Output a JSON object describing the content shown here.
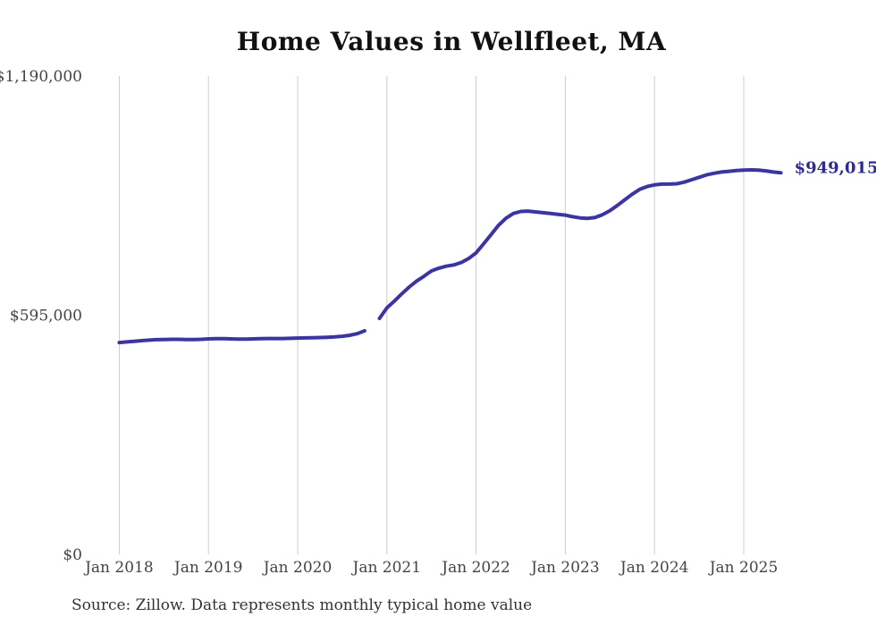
{
  "page": {
    "title": "Home Values in Wellfleet, MA",
    "source_note": "Source: Zillow. Data represents monthly typical home value"
  },
  "chart_data": {
    "type": "line",
    "title": "Home Values in Wellfleet, MA",
    "series_name": "Monthly typical home value",
    "x_start_month": "Jan 2018",
    "x_end_month": "Jun 2025",
    "x_tick_labels": [
      "Jan 2018",
      "Jan 2019",
      "Jan 2020",
      "Jan 2021",
      "Jan 2022",
      "Jan 2023",
      "Jan 2024",
      "Jan 2025"
    ],
    "x_tick_month_index": [
      0,
      12,
      24,
      36,
      48,
      60,
      72,
      84
    ],
    "y_tick_labels": [
      "$0",
      "$595,000",
      "$1,190,000"
    ],
    "y_tick_values": [
      0,
      595000,
      1190000
    ],
    "ylim": [
      0,
      1190000
    ],
    "grid": "vertical-only",
    "legend": "none",
    "gap_months": [
      "Nov 2020"
    ],
    "end_label": "$949,015",
    "end_value": 949015,
    "values_monthly": [
      527000,
      528500,
      530000,
      531500,
      533000,
      534000,
      534500,
      535000,
      535000,
      534500,
      534500,
      535000,
      536000,
      536500,
      536500,
      536000,
      535500,
      535500,
      536000,
      536500,
      537000,
      537000,
      537000,
      537500,
      538000,
      538500,
      539000,
      539500,
      540000,
      541000,
      542500,
      545000,
      549000,
      556000,
      null,
      587000,
      613000,
      630000,
      648000,
      665000,
      680000,
      692000,
      705000,
      712000,
      717000,
      720000,
      726000,
      736000,
      750000,
      772000,
      795000,
      818000,
      836000,
      848000,
      853000,
      854000,
      852000,
      850000,
      848000,
      846000,
      844000,
      840000,
      837000,
      836000,
      838000,
      845000,
      855000,
      868000,
      882000,
      896000,
      908000,
      915000,
      919000,
      921000,
      921000,
      922000,
      926000,
      932000,
      938000,
      944000,
      948000,
      951000,
      953000,
      955000,
      956000,
      956500,
      956000,
      954000,
      951000,
      949015
    ],
    "colors": {
      "line": "#3b34a1",
      "end_label_text": "#2d2b8c",
      "gridline": "#cccccc",
      "axis_text": "#444444",
      "title_text": "#111111",
      "source_text": "#333333"
    }
  }
}
